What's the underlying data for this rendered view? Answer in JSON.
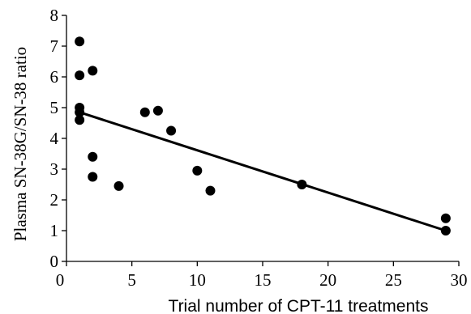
{
  "chart_data": {
    "type": "scatter",
    "title": "",
    "xlabel": "Trial number of CPT-11 treatments",
    "ylabel": "Plasma SN-38G/SN-38 ratio",
    "xlim": [
      0,
      30
    ],
    "ylim": [
      0,
      8
    ],
    "xticks": [
      "0",
      "5",
      "10",
      "15",
      "20",
      "25",
      "30"
    ],
    "yticks": [
      "0",
      "1",
      "2",
      "3",
      "4",
      "5",
      "6",
      "7",
      "8"
    ],
    "grid": false,
    "legend": "none",
    "points": [
      {
        "x": 1,
        "y": 7.15
      },
      {
        "x": 1,
        "y": 6.05
      },
      {
        "x": 2,
        "y": 6.2
      },
      {
        "x": 1,
        "y": 5.0
      },
      {
        "x": 1,
        "y": 4.85
      },
      {
        "x": 1,
        "y": 4.6
      },
      {
        "x": 2,
        "y": 3.4
      },
      {
        "x": 2,
        "y": 2.75
      },
      {
        "x": 4,
        "y": 2.45
      },
      {
        "x": 6,
        "y": 4.85
      },
      {
        "x": 7,
        "y": 4.9
      },
      {
        "x": 8,
        "y": 4.25
      },
      {
        "x": 10,
        "y": 2.95
      },
      {
        "x": 11,
        "y": 2.3
      },
      {
        "x": 18,
        "y": 2.5
      },
      {
        "x": 29,
        "y": 1.4
      },
      {
        "x": 29,
        "y": 1.0
      }
    ],
    "trendline": {
      "x1": 1,
      "y1": 4.85,
      "x2": 29,
      "y2": 1.0
    },
    "colors": {
      "points": "#000000",
      "line": "#000000",
      "axis": "#000000"
    }
  }
}
